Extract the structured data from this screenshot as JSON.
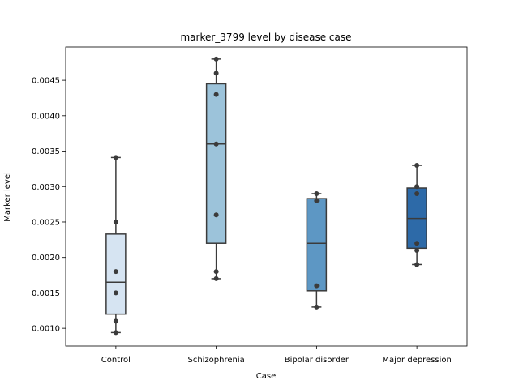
{
  "chart_data": {
    "type": "box",
    "title": "marker_3799 level by disease case",
    "xlabel": "Case",
    "ylabel": "Marker level",
    "ylim": [
      0.00075,
      0.00497
    ],
    "yticks": [
      "0.0010",
      "0.0015",
      "0.0020",
      "0.0025",
      "0.0030",
      "0.0035",
      "0.0040",
      "0.0045"
    ],
    "categories": [
      "Control",
      "Schizophrenia",
      "Bipolar disorder",
      "Major depression"
    ],
    "series": [
      {
        "category": "Control",
        "color": "#d6e4f2",
        "box": {
          "whisker_low": 0.00094,
          "q1": 0.0012,
          "median": 0.00165,
          "q3": 0.00233,
          "whisker_high": 0.00341
        },
        "points": [
          0.00341,
          0.0025,
          0.0018,
          0.0015,
          0.0011,
          0.00094
        ]
      },
      {
        "category": "Schizophrenia",
        "color": "#9cc3da",
        "box": {
          "whisker_low": 0.0017,
          "q1": 0.0022,
          "median": 0.0036,
          "q3": 0.00445,
          "whisker_high": 0.0048
        },
        "points": [
          0.0048,
          0.0046,
          0.0043,
          0.0036,
          0.0026,
          0.0018,
          0.0017
        ]
      },
      {
        "category": "Bipolar disorder",
        "color": "#5d97c4",
        "box": {
          "whisker_low": 0.0013,
          "q1": 0.00153,
          "median": 0.0022,
          "q3": 0.00283,
          "whisker_high": 0.0029
        },
        "points": [
          0.0029,
          0.0028,
          0.0016,
          0.0013
        ]
      },
      {
        "category": "Major depression",
        "color": "#2d6aa8",
        "box": {
          "whisker_low": 0.0019,
          "q1": 0.00213,
          "median": 0.00255,
          "q3": 0.00298,
          "whisker_high": 0.0033
        },
        "points": [
          0.0033,
          0.003,
          0.0029,
          0.0022,
          0.0021,
          0.0019
        ]
      }
    ],
    "point_color": "#3b3b3b",
    "line_color": "#3b3b3b",
    "grid": false,
    "legend": "none"
  }
}
